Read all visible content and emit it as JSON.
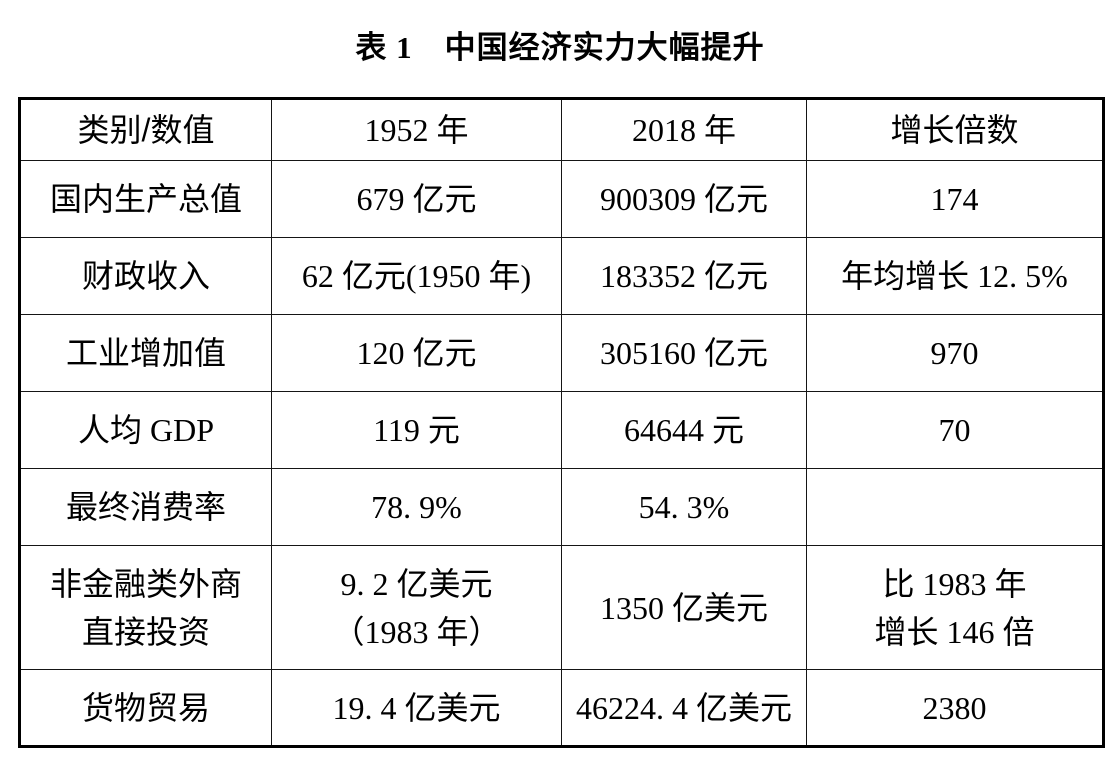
{
  "title": "表 1　中国经济实力大幅提升",
  "table": {
    "headers": [
      "类别/数值",
      "1952 年",
      "2018 年",
      "增长倍数"
    ],
    "rows": [
      [
        "国内生产总值",
        "679 亿元",
        "900309 亿元",
        "174"
      ],
      [
        "财政收入",
        "62 亿元(1950 年)",
        "183352 亿元",
        "年均增长 12. 5%"
      ],
      [
        "工业增加值",
        "120 亿元",
        "305160 亿元",
        "970"
      ],
      [
        "人均 GDP",
        "119 元",
        "64644 元",
        "70"
      ],
      [
        "最终消费率",
        "78. 9%",
        "54. 3%",
        ""
      ],
      [
        "非金融类外商\n直接投资",
        "9. 2 亿美元\n（1983 年）",
        "1350 亿美元",
        "比 1983 年\n增长 146 倍"
      ],
      [
        "货物贸易",
        "19. 4 亿美元",
        "46224. 4 亿美元",
        "2380"
      ]
    ]
  }
}
